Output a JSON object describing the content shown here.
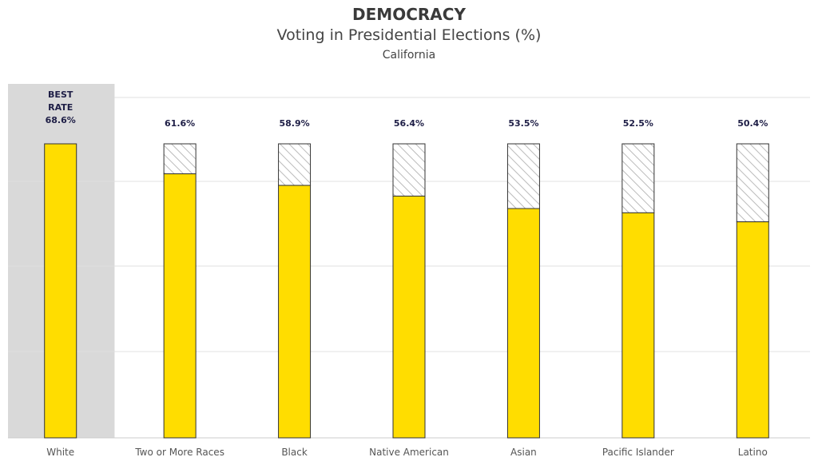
{
  "header": {
    "title": "DEMOCRACY",
    "subtitle": "Voting in Presidential Elections (%)",
    "region": "California"
  },
  "chart_data": {
    "type": "bar",
    "categories": [
      "White",
      "Two or More Races",
      "Black",
      "Native American",
      "Asian",
      "Pacific Islander",
      "Latino"
    ],
    "values": [
      68.6,
      61.6,
      58.9,
      56.4,
      53.5,
      52.5,
      50.4
    ],
    "value_labels": [
      "68.6%",
      "61.6%",
      "58.9%",
      "56.4%",
      "53.5%",
      "52.5%",
      "50.4%"
    ],
    "best_label_lines": [
      "BEST",
      "RATE"
    ],
    "best_index": 0,
    "ylim": [
      0,
      68.6
    ],
    "grid": true,
    "colors": {
      "bar": "#ffdd00",
      "bar_outline": "#333333",
      "gap_hatch": "#bbbbbb",
      "best_highlight": "#d9d9d9",
      "grid": "#e0e0e0"
    }
  }
}
